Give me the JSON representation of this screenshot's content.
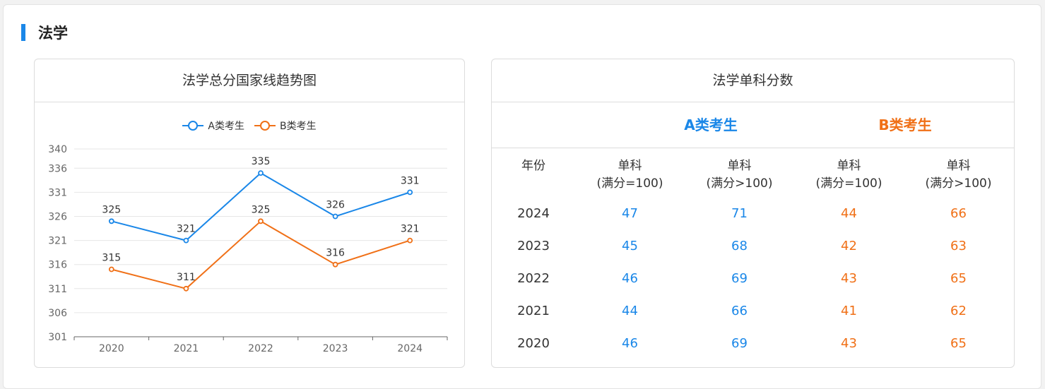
{
  "section": {
    "title": "法学"
  },
  "chart_card": {
    "title": "法学总分国家线趋势图"
  },
  "chart_data": {
    "type": "line",
    "title": "法学总分国家线趋势图",
    "categories": [
      "2020",
      "2021",
      "2022",
      "2023",
      "2024"
    ],
    "series": [
      {
        "name": "A类考生",
        "color": "#1a87e8",
        "values": [
          325,
          321,
          335,
          326,
          331
        ]
      },
      {
        "name": "B类考生",
        "color": "#f07017",
        "values": [
          315,
          311,
          325,
          316,
          321
        ]
      }
    ],
    "yticks": [
      301,
      306,
      311,
      316,
      321,
      326,
      331,
      336,
      340
    ],
    "ylim": [
      301,
      340
    ],
    "grid": true,
    "legend": "top-center"
  },
  "table_card": {
    "title": "法学单科分数",
    "group_a": "A类考生",
    "group_b": "B类考生",
    "headers": {
      "year": "年份",
      "cols": [
        {
          "l1": "单科",
          "l2": "(满分=100)"
        },
        {
          "l1": "单科",
          "l2": "(满分>100)"
        },
        {
          "l1": "单科",
          "l2": "(满分=100)"
        },
        {
          "l1": "单科",
          "l2": "(满分>100)"
        }
      ]
    },
    "rows": [
      {
        "year": "2024",
        "a1": "47",
        "a2": "71",
        "b1": "44",
        "b2": "66"
      },
      {
        "year": "2023",
        "a1": "45",
        "a2": "68",
        "b1": "42",
        "b2": "63"
      },
      {
        "year": "2022",
        "a1": "46",
        "a2": "69",
        "b1": "43",
        "b2": "65"
      },
      {
        "year": "2021",
        "a1": "44",
        "a2": "66",
        "b1": "41",
        "b2": "62"
      },
      {
        "year": "2020",
        "a1": "46",
        "a2": "69",
        "b1": "43",
        "b2": "65"
      }
    ]
  }
}
